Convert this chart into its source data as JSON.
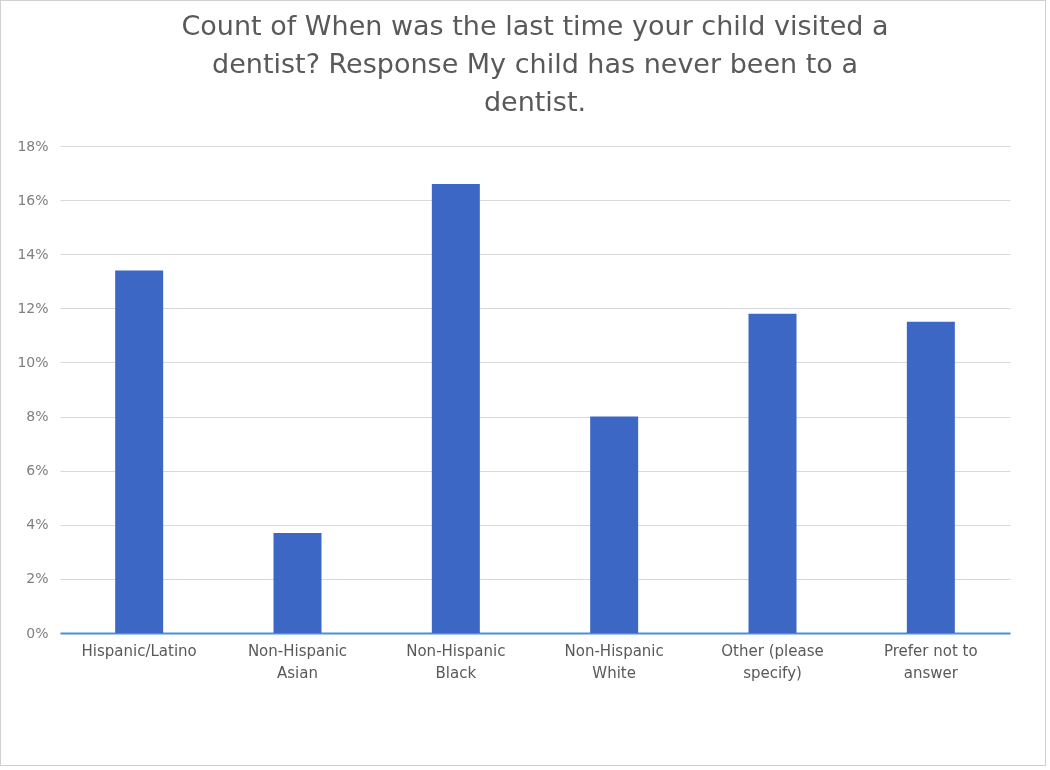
{
  "chart_data": {
    "type": "bar",
    "title": "Count of When was the last time your child visited a dentist? Response My child has never been to a dentist.",
    "categories": [
      "Hispanic/Latino",
      "Non-Hispanic Asian",
      "Non-Hispanic Black",
      "Non-Hispanic White",
      "Other (please specify)",
      "Prefer not to answer"
    ],
    "values": [
      13.4,
      3.7,
      16.6,
      8.0,
      11.8,
      11.5
    ],
    "color": "#3d67c4",
    "ylim": [
      0,
      18
    ],
    "yticks": [
      {
        "value": 0,
        "label": "0%"
      },
      {
        "value": 2,
        "label": "2%"
      },
      {
        "value": 4,
        "label": "4%"
      },
      {
        "value": 6,
        "label": "6%"
      },
      {
        "value": 8,
        "label": "8%"
      },
      {
        "value": 10,
        "label": "10%"
      },
      {
        "value": 12,
        "label": "12%"
      },
      {
        "value": 14,
        "label": "14%"
      },
      {
        "value": 16,
        "label": "16%"
      },
      {
        "value": 18,
        "label": "18%"
      }
    ],
    "grid": true
  }
}
